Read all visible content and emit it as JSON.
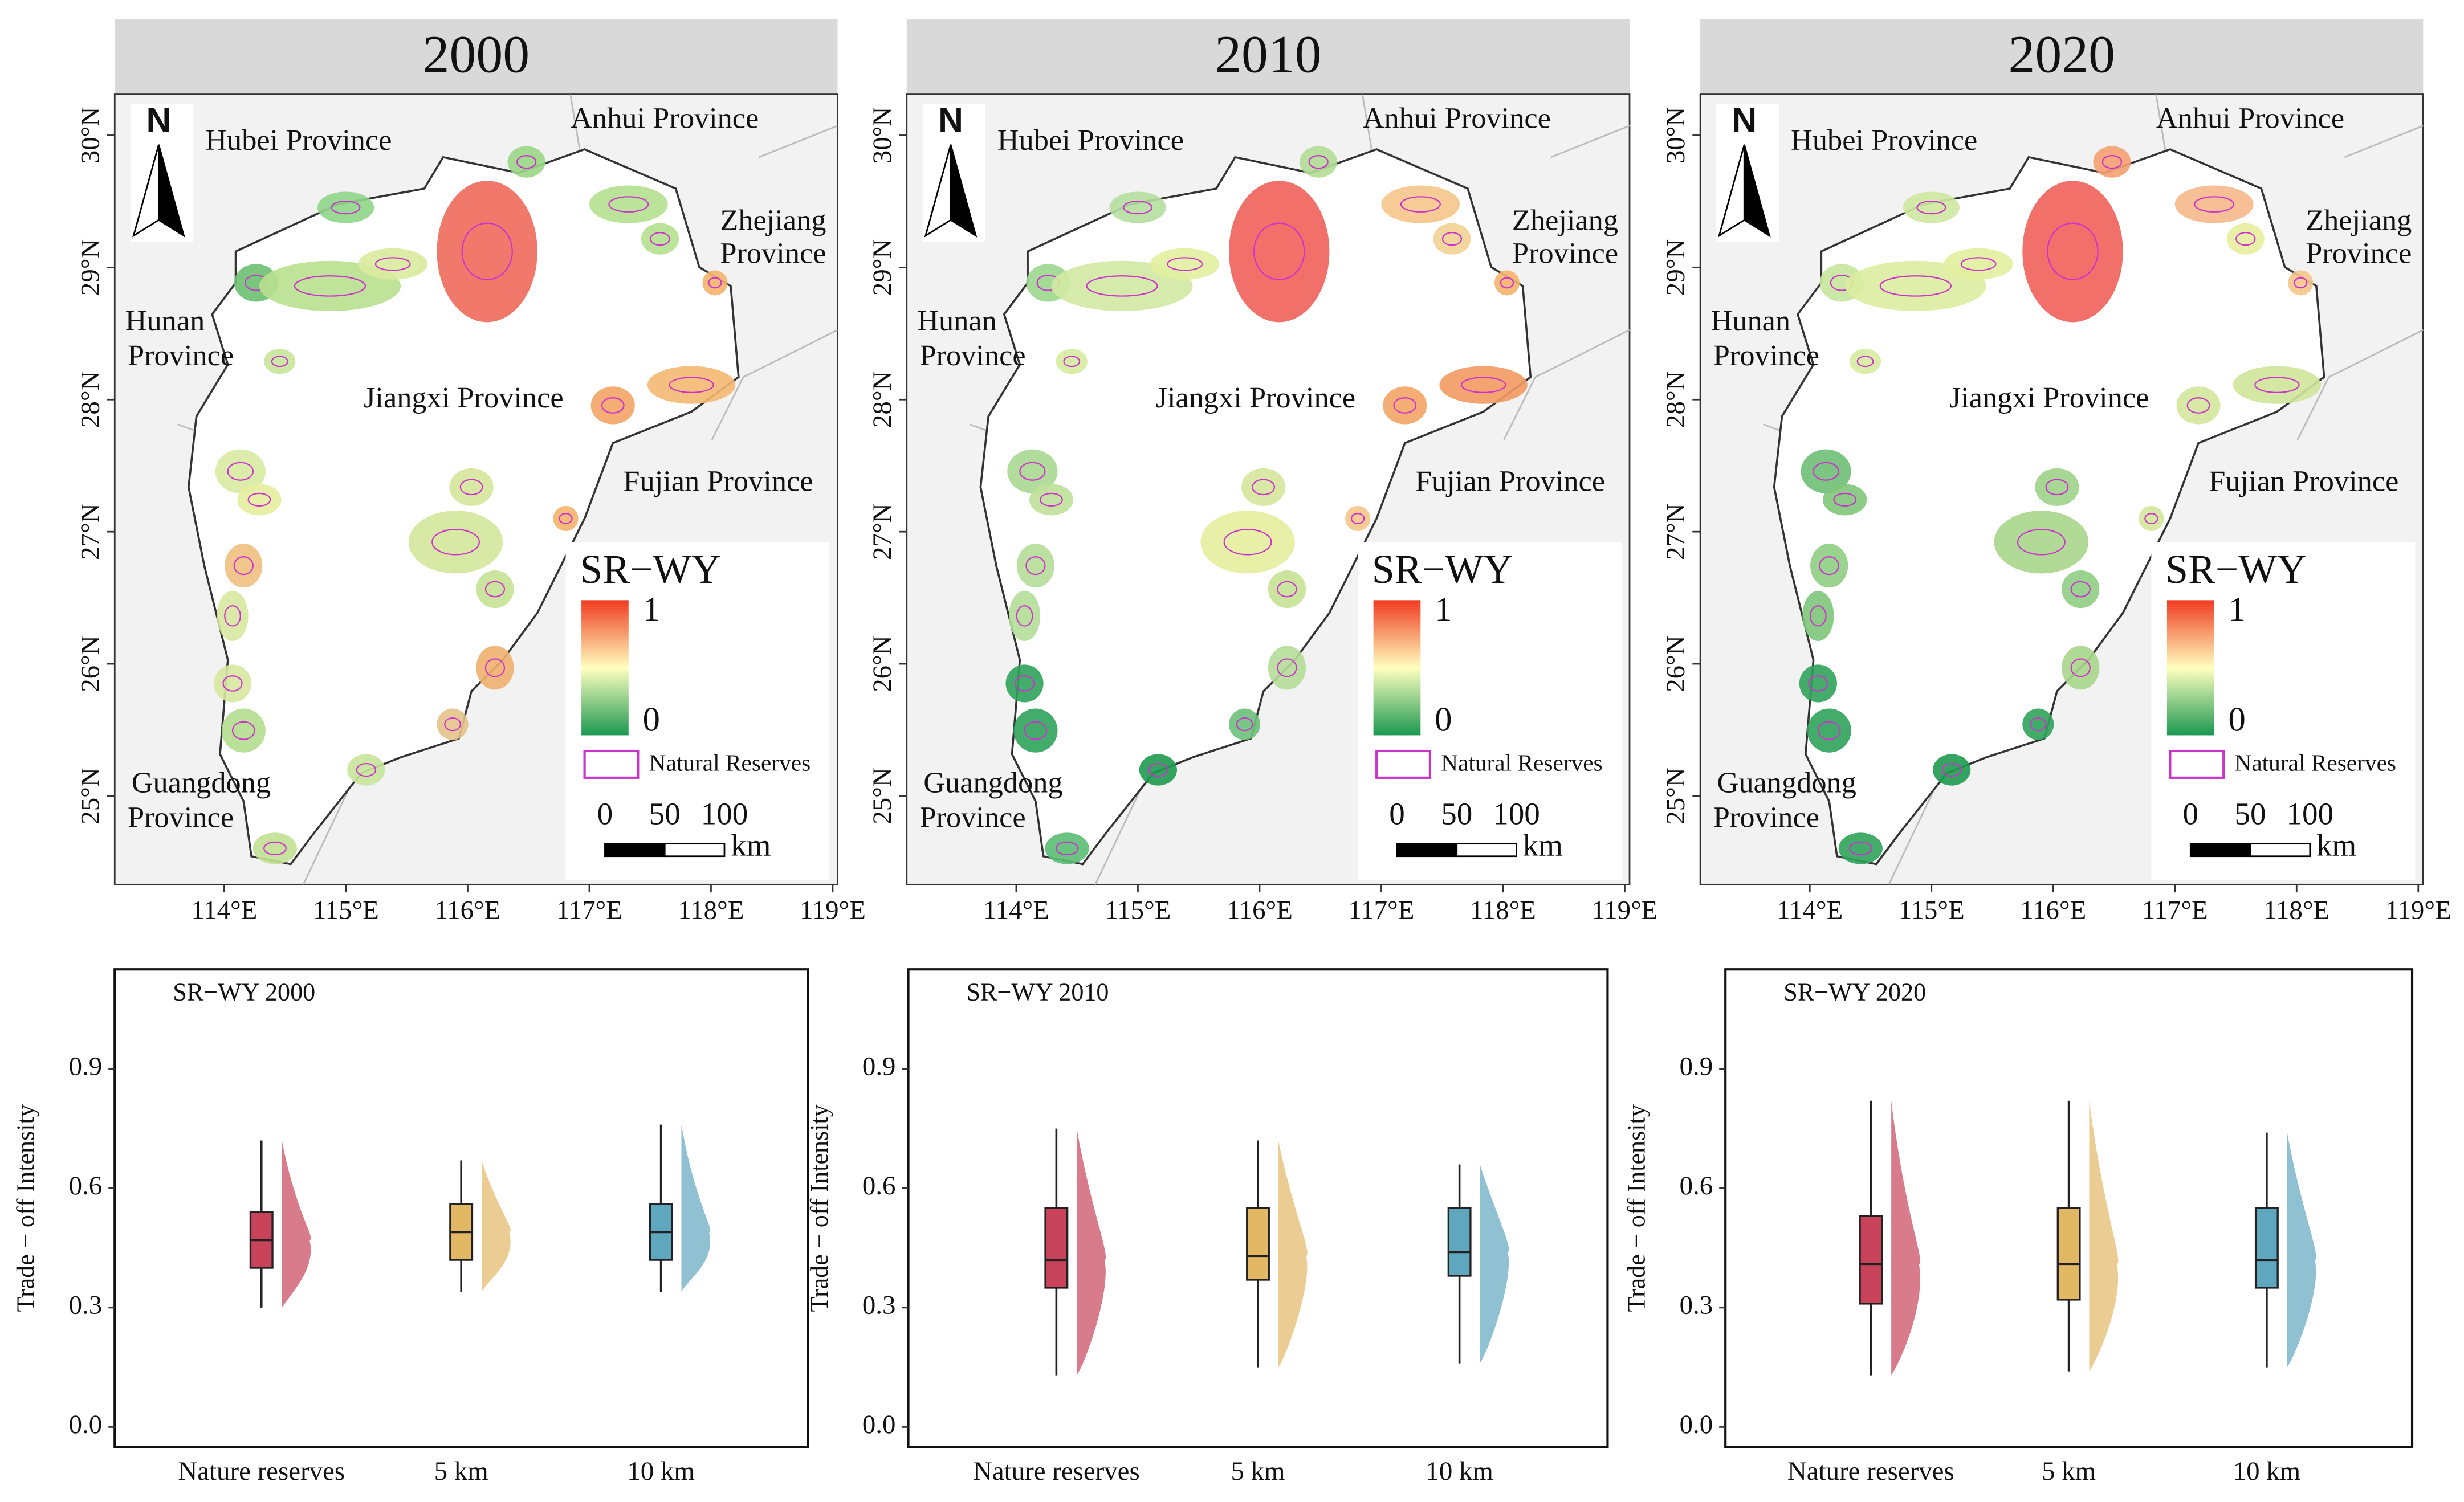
{
  "chart_data": [
    {
      "type": "map",
      "title": "2000",
      "xlim": [
        113.1,
        119.04
      ],
      "ylim": [
        24.33,
        30.31
      ],
      "xticks": [
        {
          "value": 114,
          "label": "114°E"
        },
        {
          "value": 115,
          "label": "115°E"
        },
        {
          "value": 116,
          "label": "116°E"
        },
        {
          "value": 117,
          "label": "117°E"
        },
        {
          "value": 118,
          "label": "118°E"
        },
        {
          "value": 119,
          "label": "119°E"
        }
      ],
      "yticks": [
        {
          "value": 25,
          "label": "25°N"
        },
        {
          "value": 26,
          "label": "26°N"
        },
        {
          "value": 27,
          "label": "27°N"
        },
        {
          "value": 28,
          "label": "28°N"
        },
        {
          "value": 29,
          "label": "29°N"
        },
        {
          "value": 30,
          "label": "30°N"
        }
      ],
      "annotations": [
        [
          "Hubei Province"
        ],
        [
          "Anhui Province"
        ],
        [
          "Zhejiang",
          "Province"
        ],
        [
          "Hunan",
          "Province"
        ],
        [
          "Jiangxi Province"
        ],
        [
          "Fujian Province"
        ],
        [
          "Guangdong",
          "Province"
        ]
      ],
      "north": "N",
      "legend_title": "SR−WY",
      "colorbar_ticks": [
        0,
        1
      ],
      "colorbar_colors": [
        "#1a9850",
        "#ffffbf",
        "#f03b20"
      ],
      "reserve_label": "Natural Reserves",
      "reserve_color": "#cc33cc",
      "scalebar_ticks": [
        0,
        50,
        100
      ],
      "scalebar_unit": "km"
    },
    {
      "type": "map",
      "title": "2010",
      "xlim": [
        113.1,
        119.04
      ],
      "ylim": [
        24.33,
        30.31
      ],
      "xticks": [
        {
          "value": 114,
          "label": "114°E"
        },
        {
          "value": 115,
          "label": "115°E"
        },
        {
          "value": 116,
          "label": "116°E"
        },
        {
          "value": 117,
          "label": "117°E"
        },
        {
          "value": 118,
          "label": "118°E"
        },
        {
          "value": 119,
          "label": "119°E"
        }
      ],
      "yticks": [
        {
          "value": 25,
          "label": "25°N"
        },
        {
          "value": 26,
          "label": "26°N"
        },
        {
          "value": 27,
          "label": "27°N"
        },
        {
          "value": 28,
          "label": "28°N"
        },
        {
          "value": 29,
          "label": "29°N"
        },
        {
          "value": 30,
          "label": "30°N"
        }
      ],
      "annotations": [
        [
          "Hubei Province"
        ],
        [
          "Anhui Province"
        ],
        [
          "Zhejiang",
          "Province"
        ],
        [
          "Hunan",
          "Province"
        ],
        [
          "Jiangxi Province"
        ],
        [
          "Fujian Province"
        ],
        [
          "Guangdong",
          "Province"
        ]
      ],
      "north": "N",
      "legend_title": "SR−WY",
      "colorbar_ticks": [
        0,
        1
      ],
      "colorbar_colors": [
        "#1a9850",
        "#ffffbf",
        "#f03b20"
      ],
      "reserve_label": "Natural Reserves",
      "reserve_color": "#cc33cc",
      "scalebar_ticks": [
        0,
        50,
        100
      ],
      "scalebar_unit": "km"
    },
    {
      "type": "map",
      "title": "2020",
      "xlim": [
        113.1,
        119.04
      ],
      "ylim": [
        24.33,
        30.31
      ],
      "xticks": [
        {
          "value": 114,
          "label": "114°E"
        },
        {
          "value": 115,
          "label": "115°E"
        },
        {
          "value": 116,
          "label": "116°E"
        },
        {
          "value": 117,
          "label": "117°E"
        },
        {
          "value": 118,
          "label": "118°E"
        },
        {
          "value": 119,
          "label": "119°E"
        }
      ],
      "yticks": [
        {
          "value": 25,
          "label": "25°N"
        },
        {
          "value": 26,
          "label": "26°N"
        },
        {
          "value": 27,
          "label": "27°N"
        },
        {
          "value": 28,
          "label": "28°N"
        },
        {
          "value": 29,
          "label": "29°N"
        },
        {
          "value": 30,
          "label": "30°N"
        }
      ],
      "annotations": [
        [
          "Hubei Province"
        ],
        [
          "Anhui Province"
        ],
        [
          "Zhejiang",
          "Province"
        ],
        [
          "Hunan",
          "Province"
        ],
        [
          "Jiangxi Province"
        ],
        [
          "Fujian Province"
        ],
        [
          "Guangdong",
          "Province"
        ]
      ],
      "north": "N",
      "legend_title": "SR−WY",
      "colorbar_ticks": [
        0,
        1
      ],
      "colorbar_colors": [
        "#1a9850",
        "#ffffbf",
        "#f03b20"
      ],
      "reserve_label": "Natural Reserves",
      "reserve_color": "#cc33cc",
      "scalebar_ticks": [
        0,
        50,
        100
      ],
      "scalebar_unit": "km"
    },
    {
      "type": "box",
      "title": "SR−WY 2000",
      "ylabel": "Trade − off Intensity",
      "categories": [
        "Nature reserves",
        "5 km",
        "10 km"
      ],
      "colors": [
        "#c8435a",
        "#e3b865",
        "#5fa7bf"
      ],
      "ylim": [
        -0.05,
        1.15
      ],
      "yticks": [
        {
          "value": 0,
          "label": "0.0"
        },
        0.3,
        0.6,
        0.9
      ],
      "stats": {
        "min": [
          0.3,
          0.34,
          0.34
        ],
        "q1": [
          0.4,
          0.42,
          0.42
        ],
        "median": [
          0.47,
          0.49,
          0.49
        ],
        "q3": [
          0.54,
          0.56,
          0.56
        ],
        "max": [
          0.72,
          0.67,
          0.76
        ]
      }
    },
    {
      "type": "box",
      "title": "SR−WY 2010",
      "ylabel": "Trade − off Intensity",
      "categories": [
        "Nature reserves",
        "5 km",
        "10 km"
      ],
      "colors": [
        "#c8435a",
        "#e3b865",
        "#5fa7bf"
      ],
      "ylim": [
        -0.05,
        1.15
      ],
      "yticks": [
        {
          "value": 0,
          "label": "0.0"
        },
        0.3,
        0.6,
        0.9
      ],
      "stats": {
        "min": [
          0.13,
          0.15,
          0.16
        ],
        "q1": [
          0.35,
          0.37,
          0.38
        ],
        "median": [
          0.42,
          0.43,
          0.44
        ],
        "q3": [
          0.55,
          0.55,
          0.55
        ],
        "max": [
          0.75,
          0.72,
          0.66
        ]
      }
    },
    {
      "type": "box",
      "title": "SR−WY 2020",
      "ylabel": "Trade − off Intensity",
      "categories": [
        "Nature reserves",
        "5 km",
        "10 km"
      ],
      "colors": [
        "#c8435a",
        "#e3b865",
        "#5fa7bf"
      ],
      "ylim": [
        -0.05,
        1.15
      ],
      "yticks": [
        {
          "value": 0,
          "label": "0.0"
        },
        0.3,
        0.6,
        0.9
      ],
      "stats": {
        "min": [
          0.13,
          0.14,
          0.15
        ],
        "q1": [
          0.31,
          0.32,
          0.35
        ],
        "median": [
          0.41,
          0.41,
          0.42
        ],
        "q3": [
          0.53,
          0.55,
          0.55
        ],
        "max": [
          0.82,
          0.82,
          0.74
        ]
      }
    }
  ]
}
